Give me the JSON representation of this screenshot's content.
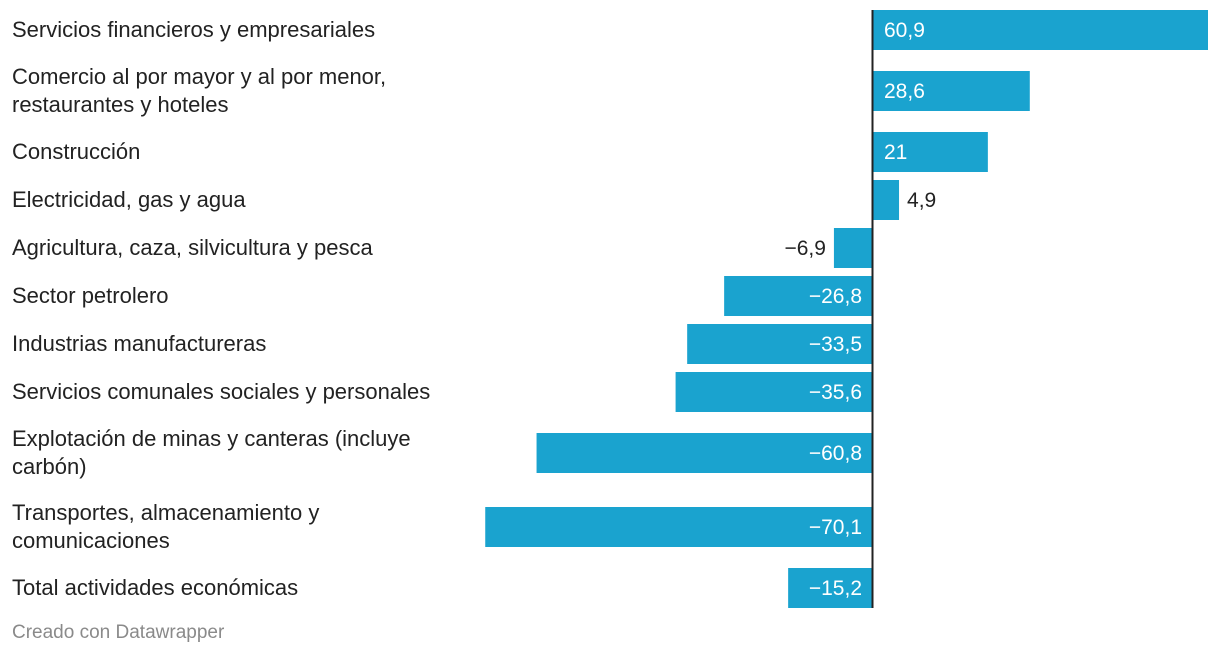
{
  "chart_data": {
    "type": "bar",
    "orientation": "horizontal",
    "title": "",
    "xlabel": "",
    "ylabel": "",
    "xlim": [
      -70.1,
      60.9
    ],
    "grid": false,
    "categories": [
      [
        "Servicios financieros y empresariales"
      ],
      [
        "Comercio al por mayor y al por menor,",
        "restaurantes y hoteles"
      ],
      [
        "Construcción"
      ],
      [
        "Electricidad, gas y agua"
      ],
      [
        "Agricultura, caza, silvicultura y pesca"
      ],
      [
        "Sector petrolero"
      ],
      [
        "Industrias manufactureras"
      ],
      [
        "Servicios comunales sociales y personales"
      ],
      [
        "Explotación de minas y canteras (incluye",
        "carbón)"
      ],
      [
        "Transportes, almacenamiento y",
        "comunicaciones"
      ],
      [
        "Total actividades económicas"
      ]
    ],
    "values": [
      60.9,
      28.6,
      21,
      4.9,
      -6.9,
      -26.8,
      -33.5,
      -35.6,
      -60.8,
      -70.1,
      -15.2
    ],
    "value_labels": [
      "60,9",
      "28,6",
      "21",
      "4,9",
      "−6,9",
      "−26,8",
      "−33,5",
      "−35,6",
      "−60,8",
      "−70,1",
      "−15,2"
    ],
    "bar_color": "#1aa3cf",
    "axis_color": "#222222"
  },
  "footer": {
    "credit": "Creado con Datawrapper"
  }
}
